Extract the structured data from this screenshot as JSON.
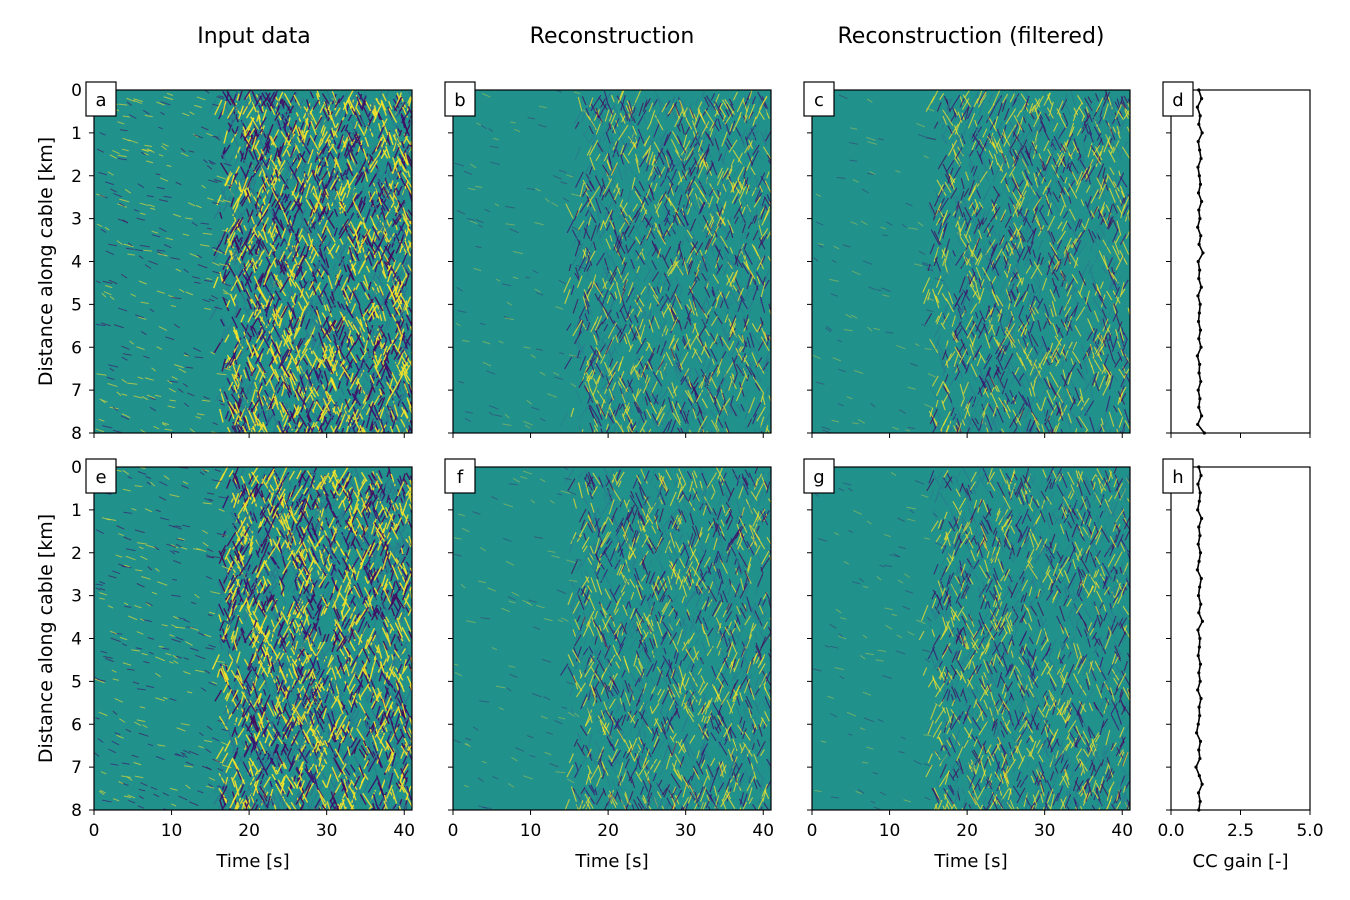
{
  "column_titles": [
    "Input data",
    "Reconstruction",
    "Reconstruction (filtered)"
  ],
  "chart_data": [
    {
      "type": "heatmap",
      "panel_label": "a",
      "row": 0,
      "col": 0,
      "title": "Input data",
      "xlabel": "",
      "ylabel": "Distance along cable [km]",
      "xlim": [
        0,
        41
      ],
      "ylim": [
        8,
        0
      ],
      "xticks": [
        0,
        10,
        20,
        30,
        40
      ],
      "yticks": [
        0,
        1,
        2,
        3,
        4,
        5,
        6,
        7,
        8
      ],
      "show_xticklabels": false,
      "show_yticklabels": true,
      "colormap": "viridis",
      "onset_time_s": 17,
      "amplitude": "strong"
    },
    {
      "type": "heatmap",
      "panel_label": "b",
      "row": 0,
      "col": 1,
      "title": "Reconstruction",
      "xlabel": "",
      "ylabel": "",
      "xlim": [
        0,
        41
      ],
      "ylim": [
        8,
        0
      ],
      "xticks": [
        0,
        10,
        20,
        30,
        40
      ],
      "yticks": [
        0,
        1,
        2,
        3,
        4,
        5,
        6,
        7,
        8
      ],
      "show_xticklabels": false,
      "show_yticklabels": false,
      "colormap": "viridis",
      "onset_time_s": 16,
      "amplitude": "medium"
    },
    {
      "type": "heatmap",
      "panel_label": "c",
      "row": 0,
      "col": 2,
      "title": "Reconstruction (filtered)",
      "xlabel": "",
      "ylabel": "",
      "xlim": [
        0,
        41
      ],
      "ylim": [
        8,
        0
      ],
      "xticks": [
        0,
        10,
        20,
        30,
        40
      ],
      "yticks": [
        0,
        1,
        2,
        3,
        4,
        5,
        6,
        7,
        8
      ],
      "show_xticklabels": false,
      "show_yticklabels": false,
      "colormap": "viridis",
      "onset_time_s": 16,
      "amplitude": "medium"
    },
    {
      "type": "line",
      "panel_label": "d",
      "row": 0,
      "col": 3,
      "xlabel": "",
      "ylabel": "",
      "xlim": [
        0,
        5
      ],
      "ylim": [
        8,
        0
      ],
      "xticks": [
        0,
        2.5,
        5
      ],
      "xticklabels": [
        "0.0",
        "2.5",
        "5.0"
      ],
      "yticks": [
        0,
        1,
        2,
        3,
        4,
        5,
        6,
        7,
        8
      ],
      "show_xticklabels": false,
      "show_yticklabels": false,
      "series": [
        {
          "x": [
            1.0,
            1.1,
            0.95,
            1.05,
            1.0,
            1.12,
            0.98,
            1.03,
            1.08,
            0.97,
            1.02,
            1.06,
            0.99,
            1.1,
            1.0,
            1.04,
            0.96,
            1.07,
            1.01,
            1.15,
            0.98,
            1.03,
            1.0,
            1.09,
            0.97,
            1.05,
            1.02,
            0.99,
            1.06,
            1.0,
            1.08,
            0.95,
            1.03,
            1.01,
            1.07,
            0.98,
            1.04,
            1.0,
            1.1,
            0.96,
            1.2
          ],
          "y": [
            0,
            0.2,
            0.4,
            0.6,
            0.8,
            1.0,
            1.2,
            1.4,
            1.6,
            1.8,
            2.0,
            2.2,
            2.4,
            2.6,
            2.8,
            3.0,
            3.2,
            3.4,
            3.6,
            3.8,
            4.0,
            4.2,
            4.4,
            4.6,
            4.8,
            5.0,
            5.2,
            5.4,
            5.6,
            5.8,
            6.0,
            6.2,
            6.4,
            6.6,
            6.8,
            7.0,
            7.2,
            7.4,
            7.6,
            7.8,
            8.0
          ]
        }
      ]
    },
    {
      "type": "heatmap",
      "panel_label": "e",
      "row": 1,
      "col": 0,
      "title": "",
      "xlabel": "Time [s]",
      "ylabel": "Distance along cable [km]",
      "xlim": [
        0,
        41
      ],
      "ylim": [
        8,
        0
      ],
      "xticks": [
        0,
        10,
        20,
        30,
        40
      ],
      "yticks": [
        0,
        1,
        2,
        3,
        4,
        5,
        6,
        7,
        8
      ],
      "show_xticklabels": true,
      "show_yticklabels": true,
      "colormap": "viridis",
      "onset_time_s": 17,
      "amplitude": "strong"
    },
    {
      "type": "heatmap",
      "panel_label": "f",
      "row": 1,
      "col": 1,
      "title": "",
      "xlabel": "Time [s]",
      "ylabel": "",
      "xlim": [
        0,
        41
      ],
      "ylim": [
        8,
        0
      ],
      "xticks": [
        0,
        10,
        20,
        30,
        40
      ],
      "yticks": [
        0,
        1,
        2,
        3,
        4,
        5,
        6,
        7,
        8
      ],
      "show_xticklabels": true,
      "show_yticklabels": false,
      "colormap": "viridis",
      "onset_time_s": 16,
      "amplitude": "medium"
    },
    {
      "type": "heatmap",
      "panel_label": "g",
      "row": 1,
      "col": 2,
      "title": "",
      "xlabel": "Time [s]",
      "ylabel": "",
      "xlim": [
        0,
        41
      ],
      "ylim": [
        8,
        0
      ],
      "xticks": [
        0,
        10,
        20,
        30,
        40
      ],
      "yticks": [
        0,
        1,
        2,
        3,
        4,
        5,
        6,
        7,
        8
      ],
      "show_xticklabels": true,
      "show_yticklabels": false,
      "colormap": "viridis",
      "onset_time_s": 16,
      "amplitude": "medium"
    },
    {
      "type": "line",
      "panel_label": "h",
      "row": 1,
      "col": 3,
      "xlabel": "CC gain [-]",
      "ylabel": "",
      "xlim": [
        0,
        5
      ],
      "ylim": [
        8,
        0
      ],
      "xticks": [
        0,
        2.5,
        5
      ],
      "xticklabels": [
        "0.0",
        "2.5",
        "5.0"
      ],
      "yticks": [
        0,
        1,
        2,
        3,
        4,
        5,
        6,
        7,
        8
      ],
      "show_xticklabels": true,
      "show_yticklabels": false,
      "series": [
        {
          "x": [
            1.0,
            1.08,
            0.97,
            1.05,
            1.02,
            0.96,
            1.1,
            1.0,
            1.04,
            0.98,
            1.06,
            1.01,
            0.95,
            1.09,
            1.03,
            0.99,
            1.07,
            1.0,
            1.13,
            0.97,
            1.04,
            1.02,
            0.98,
            1.06,
            1.0,
            1.05,
            0.96,
            1.08,
            1.01,
            1.03,
            0.98,
            0.92,
            1.06,
            1.0,
            1.04,
            0.9,
            1.02,
            1.12,
            0.99,
            1.05,
            1.0
          ],
          "y": [
            0,
            0.2,
            0.4,
            0.6,
            0.8,
            1.0,
            1.2,
            1.4,
            1.6,
            1.8,
            2.0,
            2.2,
            2.4,
            2.6,
            2.8,
            3.0,
            3.2,
            3.4,
            3.6,
            3.8,
            4.0,
            4.2,
            4.4,
            4.6,
            4.8,
            5.0,
            5.2,
            5.4,
            5.6,
            5.8,
            6.0,
            6.2,
            6.4,
            6.6,
            6.8,
            7.0,
            7.2,
            7.4,
            7.6,
            7.8,
            8.0
          ]
        }
      ]
    }
  ]
}
